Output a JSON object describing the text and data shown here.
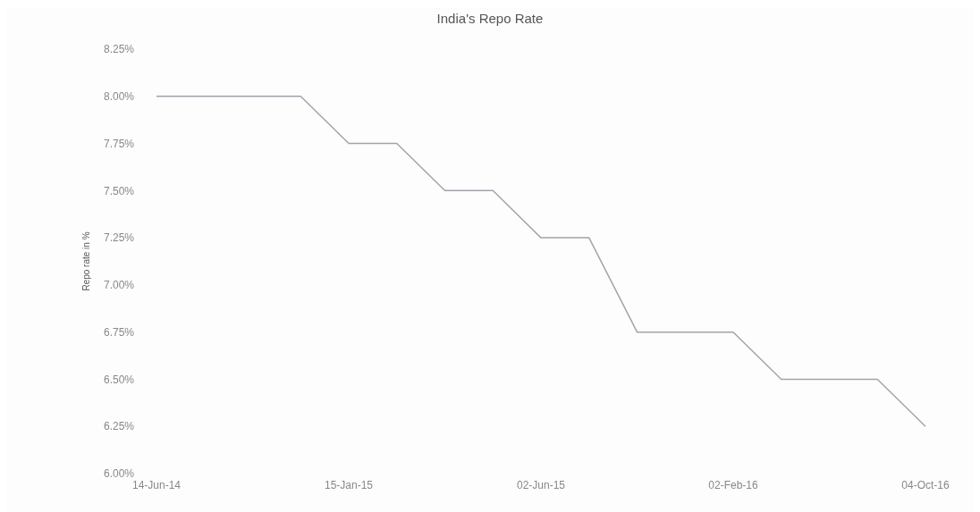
{
  "chart_data": {
    "type": "line",
    "title": "India's Repo Rate",
    "ylabel": "Repo rate in %",
    "categories": [
      "14-Jun-14",
      null,
      null,
      null,
      "15-Jan-15",
      null,
      null,
      null,
      "02-Jun-15",
      null,
      null,
      null,
      "02-Feb-16",
      null,
      null,
      null,
      "04-Oct-16"
    ],
    "series": [
      {
        "color": "#a3a3ab",
        "values": [
          8,
          8,
          8,
          8,
          7.75,
          7.75,
          7.5,
          7.5,
          7.25,
          7.25,
          6.75,
          6.75,
          6.75,
          6.5,
          6.5,
          6.5,
          6.25
        ]
      }
    ],
    "ylim": [
      6,
      8.25
    ],
    "yticks": [
      {
        "value": 6,
        "label": "6.00%"
      },
      {
        "value": 6.25,
        "label": "6.25%"
      },
      {
        "value": 6.5,
        "label": "6.50%"
      },
      {
        "value": 6.75,
        "label": "6.75%"
      },
      {
        "value": 7,
        "label": "7.00%"
      },
      {
        "value": 7.25,
        "label": "7.25%"
      },
      {
        "value": 7.5,
        "label": "7.50%"
      },
      {
        "value": 7.75,
        "label": "7.75%"
      },
      {
        "value": 8,
        "label": "8.00%"
      },
      {
        "value": 8.25,
        "label": "8.25%"
      }
    ],
    "grid": false,
    "marker": "none",
    "line_style": "solid"
  }
}
